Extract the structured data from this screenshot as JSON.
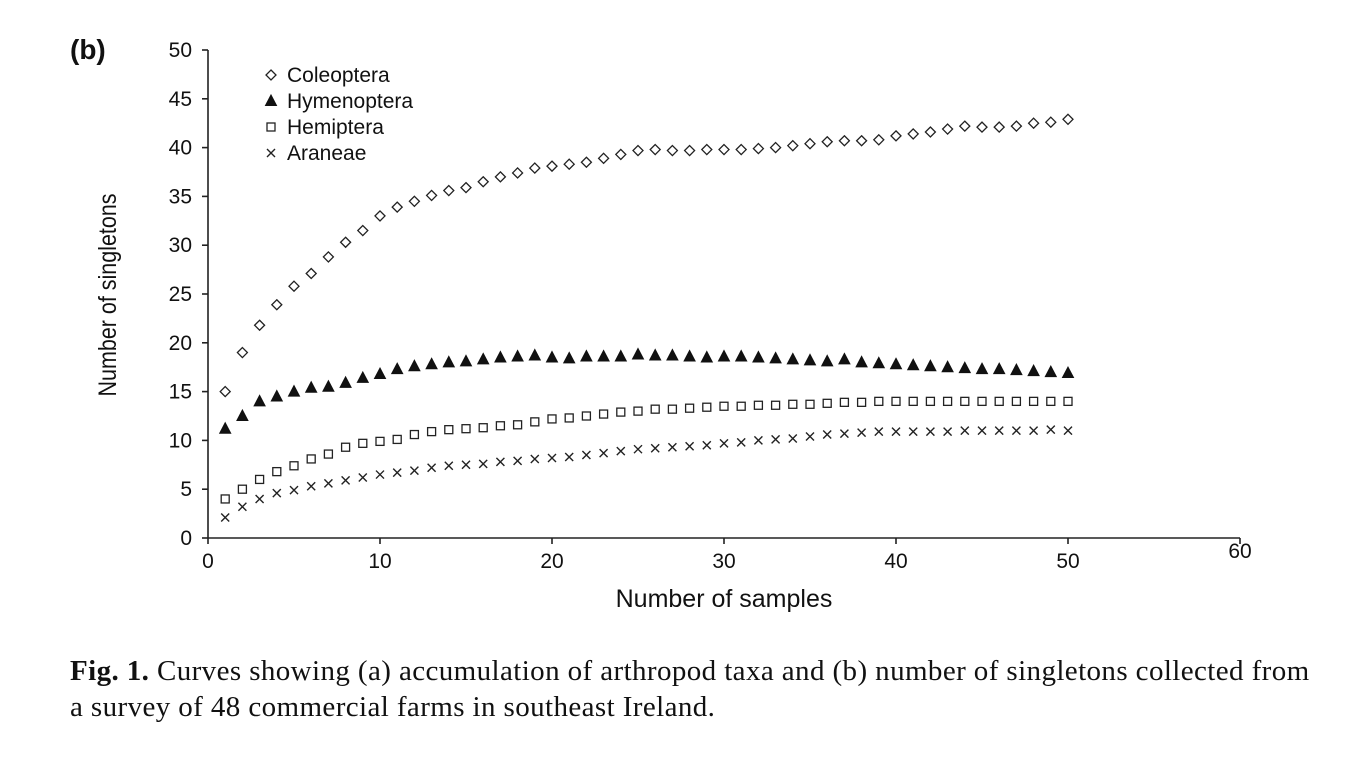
{
  "panel_label": "(b)",
  "caption": {
    "lead": "Fig. 1.",
    "text": "Curves showing (a) accumulation of arthropod taxa and (b) number of singletons collected from a survey of 48 commercial farms in southeast Ireland."
  },
  "chart_data": {
    "type": "scatter",
    "title": "",
    "xlabel": "Number of samples",
    "ylabel": "Number of singletons",
    "xlim": [
      0,
      60
    ],
    "ylim": [
      0,
      50
    ],
    "xticks": [
      0,
      10,
      20,
      30,
      40,
      50,
      60
    ],
    "yticks": [
      0,
      5,
      10,
      15,
      20,
      25,
      30,
      35,
      40,
      45,
      50
    ],
    "grid": false,
    "legend_position": "top-left",
    "series": [
      {
        "name": "Coleoptera",
        "marker": "open-diamond",
        "x": [
          1,
          2,
          3,
          4,
          5,
          6,
          7,
          8,
          9,
          10,
          11,
          12,
          13,
          14,
          15,
          16,
          17,
          18,
          19,
          20,
          21,
          22,
          23,
          24,
          25,
          26,
          27,
          28,
          29,
          30,
          31,
          32,
          33,
          34,
          35,
          36,
          37,
          38,
          39,
          40,
          41,
          42,
          43,
          44,
          45,
          46,
          47,
          48,
          49,
          50
        ],
        "y": [
          15,
          19,
          21.8,
          23.9,
          25.8,
          27.1,
          28.8,
          30.3,
          31.5,
          33,
          33.9,
          34.5,
          35.1,
          35.6,
          35.9,
          36.5,
          37,
          37.4,
          37.9,
          38.1,
          38.3,
          38.5,
          38.9,
          39.3,
          39.7,
          39.8,
          39.7,
          39.7,
          39.8,
          39.8,
          39.8,
          39.9,
          40,
          40.2,
          40.4,
          40.6,
          40.7,
          40.7,
          40.8,
          41.2,
          41.4,
          41.6,
          41.9,
          42.2,
          42.1,
          42.1,
          42.2,
          42.5,
          42.6,
          42.9
        ]
      },
      {
        "name": "Hymenoptera",
        "marker": "filled-triangle",
        "x": [
          1,
          2,
          3,
          4,
          5,
          6,
          7,
          8,
          9,
          10,
          11,
          12,
          13,
          14,
          15,
          16,
          17,
          18,
          19,
          20,
          21,
          22,
          23,
          24,
          25,
          26,
          27,
          28,
          29,
          30,
          31,
          32,
          33,
          34,
          35,
          36,
          37,
          38,
          39,
          40,
          41,
          42,
          43,
          44,
          45,
          46,
          47,
          48,
          49,
          50
        ],
        "y": [
          11.2,
          12.5,
          14,
          14.5,
          15,
          15.4,
          15.5,
          15.9,
          16.4,
          16.8,
          17.3,
          17.6,
          17.8,
          18,
          18.1,
          18.3,
          18.5,
          18.6,
          18.7,
          18.5,
          18.4,
          18.6,
          18.6,
          18.6,
          18.8,
          18.7,
          18.7,
          18.6,
          18.5,
          18.6,
          18.6,
          18.5,
          18.4,
          18.3,
          18.2,
          18.1,
          18.3,
          18,
          17.9,
          17.8,
          17.7,
          17.6,
          17.5,
          17.4,
          17.3,
          17.3,
          17.2,
          17.1,
          17,
          16.9
        ]
      },
      {
        "name": "Hemiptera",
        "marker": "open-square",
        "x": [
          1,
          2,
          3,
          4,
          5,
          6,
          7,
          8,
          9,
          10,
          11,
          12,
          13,
          14,
          15,
          16,
          17,
          18,
          19,
          20,
          21,
          22,
          23,
          24,
          25,
          26,
          27,
          28,
          29,
          30,
          31,
          32,
          33,
          34,
          35,
          36,
          37,
          38,
          39,
          40,
          41,
          42,
          43,
          44,
          45,
          46,
          47,
          48,
          49,
          50
        ],
        "y": [
          4,
          5,
          6,
          6.8,
          7.4,
          8.1,
          8.6,
          9.3,
          9.7,
          9.9,
          10.1,
          10.6,
          10.9,
          11.1,
          11.2,
          11.3,
          11.5,
          11.6,
          11.9,
          12.2,
          12.3,
          12.5,
          12.7,
          12.9,
          13,
          13.2,
          13.2,
          13.3,
          13.4,
          13.5,
          13.5,
          13.6,
          13.6,
          13.7,
          13.7,
          13.8,
          13.9,
          13.9,
          14,
          14,
          14,
          14,
          14,
          14,
          14,
          14,
          14,
          14,
          14,
          14
        ]
      },
      {
        "name": "Araneae",
        "marker": "x-cross",
        "x": [
          1,
          2,
          3,
          4,
          5,
          6,
          7,
          8,
          9,
          10,
          11,
          12,
          13,
          14,
          15,
          16,
          17,
          18,
          19,
          20,
          21,
          22,
          23,
          24,
          25,
          26,
          27,
          28,
          29,
          30,
          31,
          32,
          33,
          34,
          35,
          36,
          37,
          38,
          39,
          40,
          41,
          42,
          43,
          44,
          45,
          46,
          47,
          48,
          49,
          50
        ],
        "y": [
          2.1,
          3.2,
          4,
          4.6,
          4.9,
          5.3,
          5.6,
          5.9,
          6.2,
          6.5,
          6.7,
          6.9,
          7.2,
          7.4,
          7.5,
          7.6,
          7.8,
          7.9,
          8.1,
          8.2,
          8.3,
          8.5,
          8.7,
          8.9,
          9.1,
          9.2,
          9.3,
          9.4,
          9.5,
          9.7,
          9.8,
          10,
          10.1,
          10.2,
          10.4,
          10.6,
          10.7,
          10.8,
          10.9,
          10.9,
          10.9,
          10.9,
          10.9,
          11,
          11,
          11,
          11,
          11,
          11.1,
          11
        ]
      }
    ]
  }
}
